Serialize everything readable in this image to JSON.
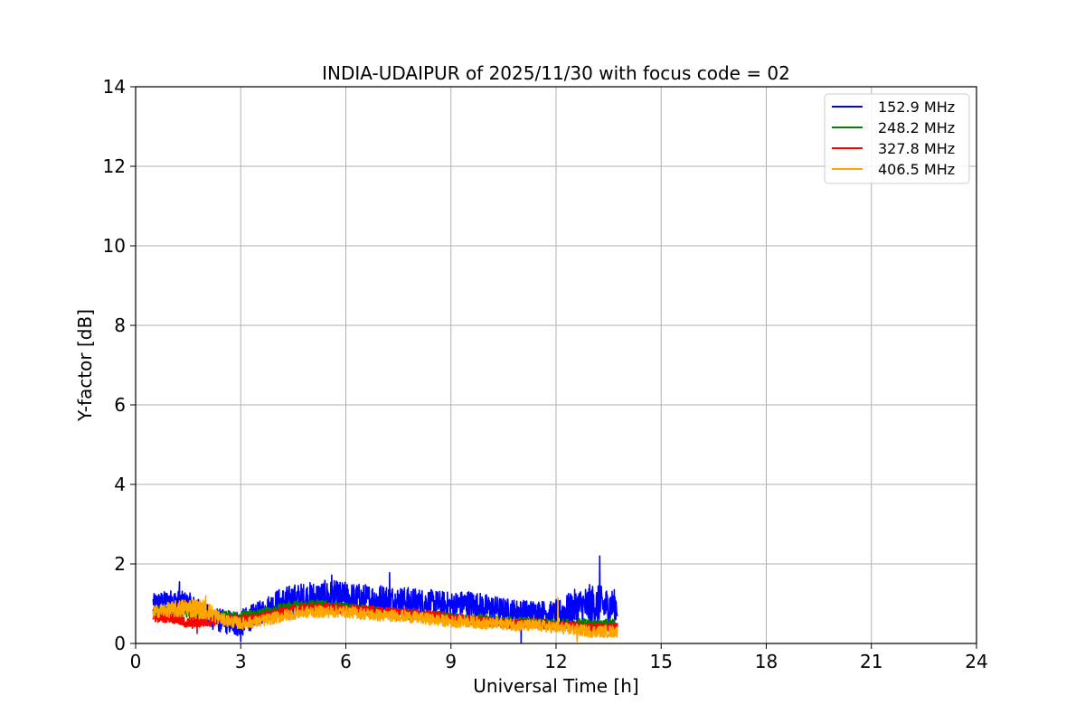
{
  "chart_data": {
    "type": "line",
    "title": "INDIA-UDAIPUR of 2025/11/30 with focus code = 02",
    "xlabel": "Universal Time [h]",
    "ylabel": "Y-factor [dB]",
    "xlim": [
      0,
      24
    ],
    "ylim": [
      0,
      14
    ],
    "xticks": [
      0,
      3,
      6,
      9,
      12,
      15,
      18,
      21,
      24
    ],
    "yticks": [
      0,
      2,
      4,
      6,
      8,
      10,
      12,
      14
    ],
    "grid": true,
    "legend_position": "top-right",
    "x_range_data": [
      0.5,
      13.75
    ],
    "series": [
      {
        "name": "152.9 MHz",
        "color": "#0000ff",
        "x": [
          0.5,
          1.0,
          1.5,
          2.0,
          2.5,
          3.0,
          3.5,
          4.0,
          4.5,
          5.0,
          5.5,
          6.0,
          6.5,
          7.0,
          7.5,
          8.0,
          8.5,
          9.0,
          9.5,
          10.0,
          10.5,
          11.0,
          11.5,
          12.0,
          12.5,
          13.0,
          13.5,
          13.75
        ],
        "mean": [
          1.05,
          1.1,
          1.0,
          0.7,
          0.55,
          0.5,
          0.75,
          1.0,
          1.1,
          1.15,
          1.15,
          1.15,
          1.1,
          1.1,
          1.05,
          1.05,
          1.0,
          0.95,
          1.0,
          0.9,
          0.85,
          0.8,
          0.8,
          0.75,
          0.9,
          0.95,
          0.95,
          0.95
        ],
        "amp": [
          0.2,
          0.25,
          0.3,
          0.3,
          0.3,
          0.35,
          0.3,
          0.35,
          0.4,
          0.4,
          0.45,
          0.4,
          0.4,
          0.4,
          0.4,
          0.35,
          0.35,
          0.35,
          0.35,
          0.35,
          0.3,
          0.3,
          0.3,
          0.3,
          0.45,
          0.55,
          0.45,
          0.4
        ],
        "spikes": [
          [
            1.25,
            1.55
          ],
          [
            5.6,
            1.72
          ],
          [
            7.25,
            1.78
          ],
          [
            11.0,
            0.02
          ],
          [
            12.0,
            1.1
          ],
          [
            13.25,
            2.2
          ],
          [
            3.0,
            0.05
          ]
        ]
      },
      {
        "name": "248.2 MHz",
        "color": "#008000",
        "x": [
          0.5,
          1.0,
          1.5,
          2.0,
          2.5,
          3.0,
          3.5,
          4.0,
          4.5,
          5.0,
          5.5,
          6.0,
          6.5,
          7.0,
          7.5,
          8.0,
          8.5,
          9.0,
          9.5,
          10.0,
          10.5,
          11.0,
          11.5,
          12.0,
          12.5,
          13.0,
          13.5,
          13.75
        ],
        "mean": [
          0.8,
          0.85,
          0.75,
          0.75,
          0.7,
          0.7,
          0.75,
          0.85,
          0.95,
          1.0,
          0.95,
          0.9,
          0.85,
          0.8,
          0.75,
          0.7,
          0.7,
          0.65,
          0.6,
          0.6,
          0.55,
          0.55,
          0.5,
          0.5,
          0.5,
          0.5,
          0.5,
          0.5
        ],
        "amp": [
          0.12,
          0.12,
          0.12,
          0.12,
          0.12,
          0.12,
          0.12,
          0.12,
          0.12,
          0.12,
          0.12,
          0.12,
          0.12,
          0.12,
          0.12,
          0.12,
          0.12,
          0.12,
          0.12,
          0.12,
          0.12,
          0.12,
          0.12,
          0.12,
          0.12,
          0.12,
          0.12,
          0.12
        ],
        "spikes": []
      },
      {
        "name": "327.8 MHz",
        "color": "#ff0000",
        "x": [
          0.5,
          1.0,
          1.5,
          2.0,
          2.5,
          3.0,
          3.5,
          4.0,
          4.5,
          5.0,
          5.5,
          6.0,
          6.5,
          7.0,
          7.5,
          8.0,
          8.5,
          9.0,
          9.5,
          10.0,
          10.5,
          11.0,
          11.5,
          12.0,
          12.5,
          13.0,
          13.5,
          13.75
        ],
        "mean": [
          0.65,
          0.65,
          0.5,
          0.55,
          0.6,
          0.6,
          0.65,
          0.75,
          0.85,
          0.9,
          0.9,
          0.85,
          0.85,
          0.8,
          0.8,
          0.75,
          0.7,
          0.65,
          0.6,
          0.55,
          0.5,
          0.5,
          0.5,
          0.45,
          0.45,
          0.4,
          0.4,
          0.4
        ],
        "amp": [
          0.12,
          0.12,
          0.14,
          0.14,
          0.12,
          0.12,
          0.12,
          0.12,
          0.12,
          0.12,
          0.12,
          0.12,
          0.12,
          0.12,
          0.12,
          0.12,
          0.12,
          0.12,
          0.12,
          0.12,
          0.12,
          0.12,
          0.12,
          0.12,
          0.12,
          0.12,
          0.12,
          0.12
        ],
        "spikes": [
          [
            1.75,
            0.25
          ]
        ]
      },
      {
        "name": "406.5 MHz",
        "color": "#ffa500",
        "x": [
          0.5,
          1.0,
          1.5,
          2.0,
          2.5,
          3.0,
          3.5,
          4.0,
          4.5,
          5.0,
          5.5,
          6.0,
          6.5,
          7.0,
          7.5,
          8.0,
          8.5,
          9.0,
          9.5,
          10.0,
          10.5,
          11.0,
          11.5,
          12.0,
          12.5,
          13.0,
          13.5,
          13.75
        ],
        "mean": [
          0.8,
          0.85,
          0.9,
          0.85,
          0.6,
          0.5,
          0.55,
          0.65,
          0.75,
          0.8,
          0.8,
          0.8,
          0.75,
          0.7,
          0.7,
          0.65,
          0.6,
          0.55,
          0.55,
          0.5,
          0.5,
          0.45,
          0.45,
          0.4,
          0.35,
          0.3,
          0.3,
          0.3
        ],
        "amp": [
          0.15,
          0.2,
          0.25,
          0.25,
          0.15,
          0.15,
          0.15,
          0.15,
          0.15,
          0.15,
          0.15,
          0.15,
          0.15,
          0.15,
          0.15,
          0.15,
          0.15,
          0.15,
          0.15,
          0.15,
          0.15,
          0.15,
          0.15,
          0.15,
          0.15,
          0.15,
          0.15,
          0.15
        ],
        "spikes": [
          [
            2.0,
            1.2
          ],
          [
            12.05,
            1.15
          ],
          [
            12.6,
            0.05
          ]
        ]
      }
    ]
  }
}
